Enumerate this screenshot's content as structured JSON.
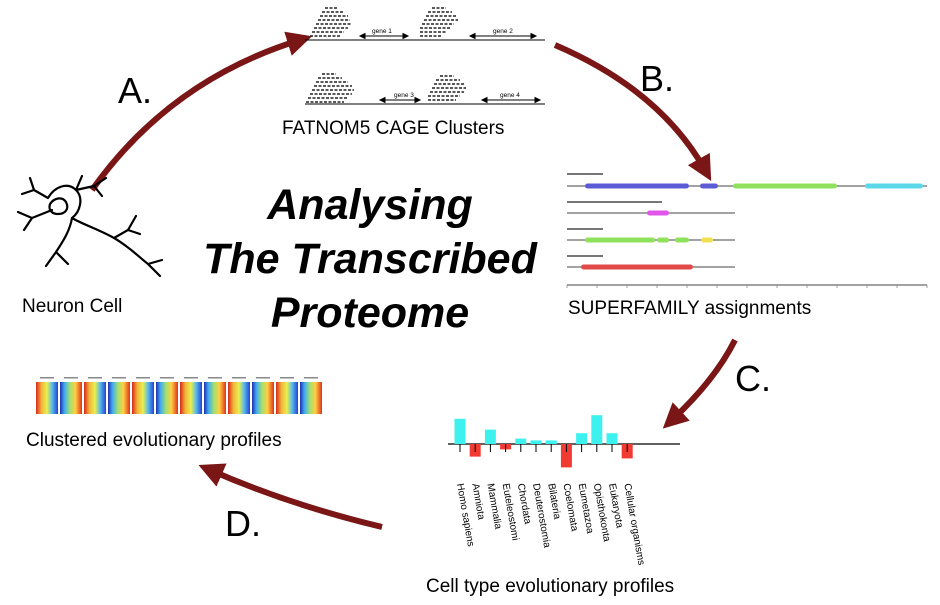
{
  "title": {
    "line1": "Analysing",
    "line2": "The Transcribed",
    "line3": "Proteome"
  },
  "steps": {
    "a": "A.",
    "b": "B.",
    "c": "C.",
    "d": "D."
  },
  "panels": {
    "neuron": "Neuron Cell",
    "cage": "FATNOM5 CAGE Clusters",
    "superfamily": "SUPERFAMILY assignments",
    "profiles": "Cell type evolutionary profiles",
    "clustered": "Clustered evolutionary profiles"
  },
  "cage_genes": [
    "gene 1",
    "gene 2",
    "gene 3",
    "gene 4"
  ],
  "taxa": [
    "Homo sapiens",
    "Amniota",
    "Mammalia",
    "Euteleostomi",
    "Chordata",
    "Deuterostomia",
    "Bilateria",
    "Coelomata",
    "Eumetazoa",
    "Opisthokonta",
    "Eukaryota",
    "Cellular organisms"
  ],
  "profile_values": [
    7,
    -3.5,
    4,
    -1.5,
    1.5,
    1,
    1,
    -6.5,
    3,
    8,
    3,
    -4
  ],
  "colors": {
    "arrow": "#7a1616",
    "positive": "#3df2ee",
    "negative": "#f03a32",
    "domain_blue": "#5b5bd6",
    "domain_green": "#8fe05a",
    "domain_cyan": "#5ad8e8",
    "domain_magenta": "#e056e8",
    "domain_red": "#e24a4a",
    "domain_yellow": "#f0e050"
  }
}
